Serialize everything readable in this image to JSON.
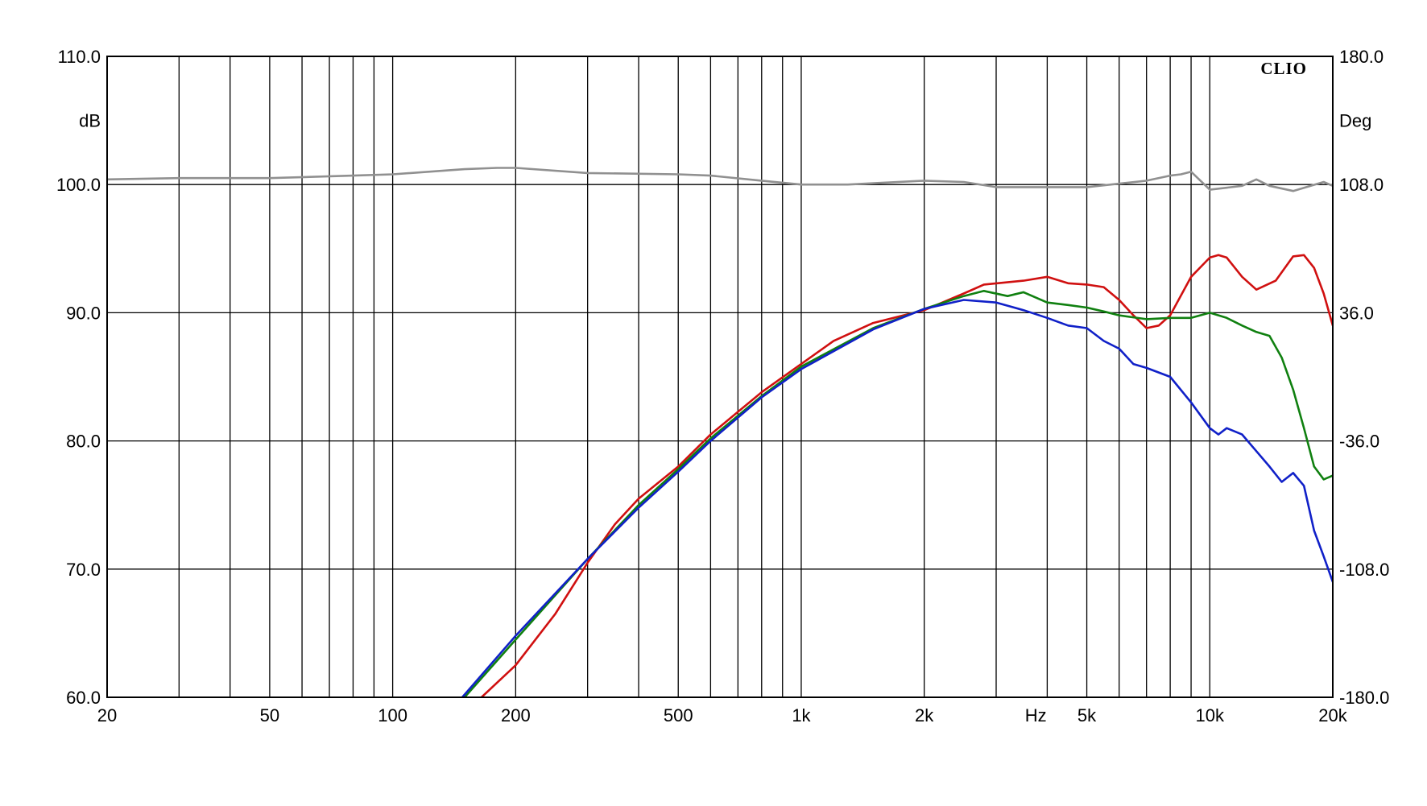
{
  "chart_data": {
    "type": "line",
    "brand": "CLIO",
    "xlabel": "Hz",
    "ylabel": "dB",
    "y2label": "Deg",
    "x_scale": "log",
    "xlim": [
      20,
      20000
    ],
    "ylim": [
      60,
      110
    ],
    "y2lim": [
      -180,
      180
    ],
    "grid": true,
    "x_ticks": [
      20,
      30,
      40,
      50,
      60,
      70,
      80,
      90,
      100,
      200,
      300,
      400,
      500,
      600,
      700,
      800,
      900,
      1000,
      2000,
      3000,
      4000,
      5000,
      6000,
      7000,
      8000,
      9000,
      10000,
      20000
    ],
    "x_tick_labels": [
      {
        "value": 20,
        "label": "20"
      },
      {
        "value": 50,
        "label": "50"
      },
      {
        "value": 100,
        "label": "100"
      },
      {
        "value": 200,
        "label": "200"
      },
      {
        "value": 500,
        "label": "500"
      },
      {
        "value": 1000,
        "label": "1k"
      },
      {
        "value": 2000,
        "label": "2k"
      },
      {
        "value": 5000,
        "label": "5k"
      },
      {
        "value": 10000,
        "label": "10k"
      },
      {
        "value": 20000,
        "label": "20k"
      }
    ],
    "y_ticks": [
      "60.0",
      "70.0",
      "80.0",
      "90.0",
      "100.0",
      "110.0"
    ],
    "y2_ticks": [
      "-180.0",
      "-108.0",
      "-36.0",
      "36.0",
      "108.0",
      "180.0"
    ],
    "series": [
      {
        "color": "#909090",
        "x": [
          20,
          30,
          50,
          80,
          100,
          150,
          180,
          200,
          300,
          500,
          600,
          800,
          1000,
          1300,
          2000,
          2500,
          3000,
          4000,
          5000,
          7000,
          8000,
          8500,
          9000,
          10000,
          12000,
          13000,
          14000,
          16000,
          19000,
          20000
        ],
        "values": [
          100.4,
          100.5,
          100.5,
          100.7,
          100.8,
          101.2,
          101.3,
          101.3,
          100.9,
          100.8,
          100.7,
          100.3,
          100.0,
          100.0,
          100.3,
          100.2,
          99.8,
          99.8,
          99.8,
          100.3,
          100.7,
          100.8,
          101.0,
          99.6,
          99.9,
          100.4,
          99.9,
          99.5,
          100.2,
          99.9
        ]
      },
      {
        "color": "#d01010",
        "x": [
          165,
          200,
          250,
          300,
          350,
          400,
          500,
          600,
          800,
          1000,
          1200,
          1500,
          2000,
          2500,
          2800,
          3500,
          4000,
          4500,
          5000,
          5500,
          6000,
          6500,
          7000,
          7500,
          8000,
          9000,
          10000,
          10500,
          11000,
          12000,
          13000,
          14500,
          16000,
          17000,
          18000,
          19000,
          20000
        ],
        "values": [
          60.0,
          62.5,
          66.5,
          70.5,
          73.5,
          75.5,
          78.0,
          80.5,
          83.8,
          86.0,
          87.8,
          89.2,
          90.2,
          91.5,
          92.2,
          92.5,
          92.8,
          92.3,
          92.2,
          92.0,
          91.0,
          89.8,
          88.8,
          89.0,
          89.8,
          92.8,
          94.3,
          94.5,
          94.3,
          92.8,
          91.8,
          92.5,
          94.4,
          94.5,
          93.5,
          91.5,
          89.0
        ]
      },
      {
        "color": "#108010",
        "x": [
          150,
          200,
          300,
          400,
          500,
          600,
          800,
          1000,
          1500,
          2000,
          2500,
          2800,
          3200,
          3500,
          4000,
          4500,
          5000,
          5500,
          6000,
          7000,
          8000,
          9000,
          10000,
          11000,
          12000,
          13000,
          14000,
          15000,
          16000,
          17000,
          18000,
          19000,
          20000
        ],
        "values": [
          60.0,
          64.5,
          70.8,
          75.0,
          77.8,
          80.2,
          83.5,
          85.8,
          88.8,
          90.3,
          91.3,
          91.7,
          91.3,
          91.6,
          90.8,
          90.6,
          90.4,
          90.1,
          89.8,
          89.5,
          89.6,
          89.6,
          90.0,
          89.6,
          89.0,
          88.5,
          88.2,
          86.5,
          84.0,
          81.0,
          78.0,
          77.0,
          77.3
        ]
      },
      {
        "color": "#1020c8",
        "x": [
          148,
          200,
          300,
          400,
          500,
          600,
          800,
          1000,
          1500,
          2000,
          2500,
          3000,
          3500,
          4000,
          4500,
          5000,
          5500,
          6000,
          6500,
          7000,
          8000,
          9000,
          10000,
          10500,
          11000,
          12000,
          13000,
          14000,
          15000,
          16000,
          17000,
          18000,
          19000,
          20000
        ],
        "values": [
          60.0,
          64.8,
          70.8,
          74.8,
          77.6,
          80.0,
          83.4,
          85.6,
          88.7,
          90.3,
          91.0,
          90.8,
          90.2,
          89.6,
          89.0,
          88.8,
          87.8,
          87.2,
          86.0,
          85.7,
          85.0,
          83.0,
          81.0,
          80.5,
          81.0,
          80.5,
          79.2,
          78.0,
          76.8,
          77.5,
          76.5,
          73.0,
          71.0,
          69.0
        ]
      }
    ]
  }
}
